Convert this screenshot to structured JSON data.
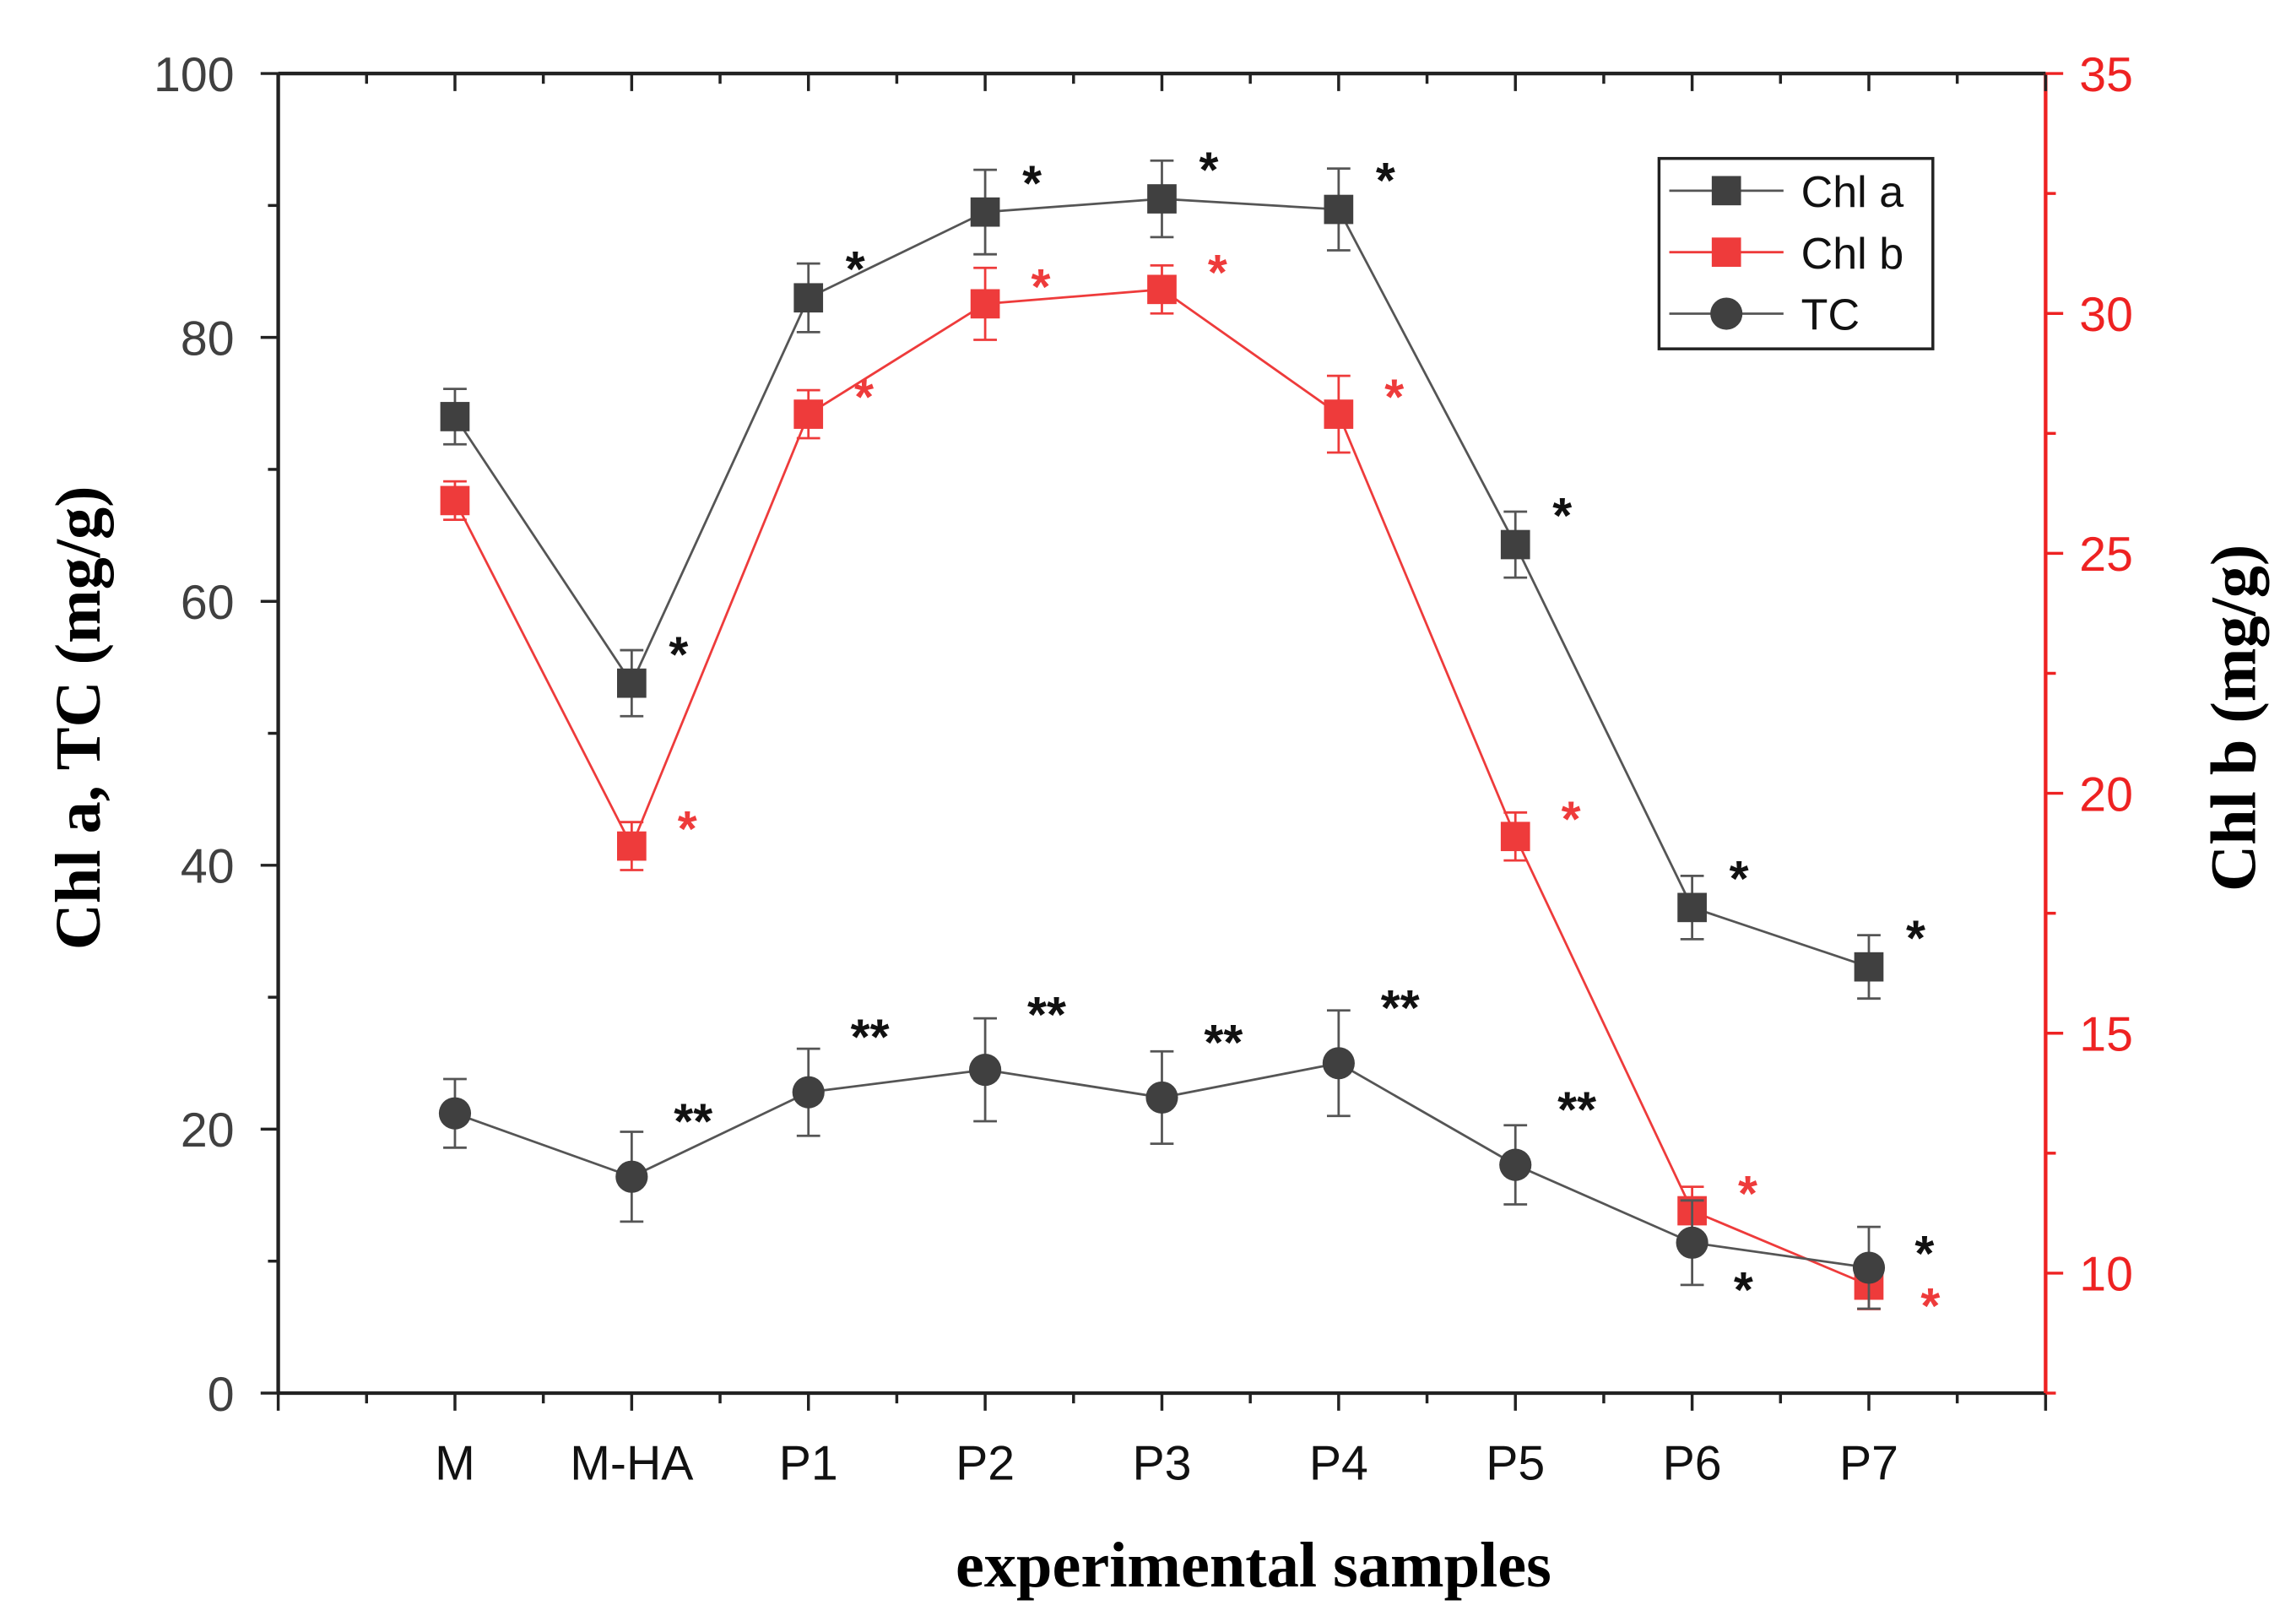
{
  "chart_data": {
    "type": "line",
    "title": "",
    "xlabel": "experimental samples",
    "ylabel": "Chl a, TC (mg/g)",
    "y2label": "Chl b (mg/g)",
    "categories": [
      "M",
      "M-HA",
      "P1",
      "P2",
      "P3",
      "P4",
      "P5",
      "P6",
      "P7"
    ],
    "ylim": [
      0,
      100
    ],
    "y2lim": [
      7.5,
      35
    ],
    "yticks": [
      "0",
      "20",
      "40",
      "60",
      "80",
      "100"
    ],
    "y2ticks": [
      "10",
      "15",
      "20",
      "25",
      "30",
      "35"
    ],
    "legend_position": "top-right",
    "series": [
      {
        "name": "Chl a",
        "axis": "left",
        "marker": "square",
        "color": "#404040",
        "values": [
          74.0,
          53.8,
          83.0,
          89.5,
          90.5,
          89.7,
          64.3,
          36.8,
          32.3
        ],
        "errors": [
          2.1,
          2.5,
          2.6,
          3.2,
          2.9,
          3.1,
          2.5,
          2.4,
          2.4
        ],
        "stars": [
          "",
          "*",
          "*",
          "*",
          "*",
          "*",
          "*",
          "*",
          "*"
        ]
      },
      {
        "name": "Chl b",
        "axis": "right",
        "marker": "square",
        "color": "#ee3b3b",
        "values": [
          26.1,
          18.9,
          27.9,
          30.2,
          30.5,
          27.9,
          19.1,
          11.3,
          9.75
        ],
        "errors": [
          0.4,
          0.5,
          0.5,
          0.75,
          0.5,
          0.8,
          0.5,
          0.5,
          0.5
        ],
        "stars": [
          "",
          "*",
          "*",
          "*",
          "*",
          "*",
          "*",
          "*",
          "*"
        ]
      },
      {
        "name": "TC",
        "axis": "left",
        "marker": "circle",
        "color": "#404040",
        "values": [
          21.2,
          16.4,
          22.8,
          24.5,
          22.4,
          25.0,
          17.3,
          11.4,
          9.5
        ],
        "errors": [
          2.6,
          3.4,
          3.3,
          3.9,
          3.5,
          4.0,
          3.0,
          3.2,
          3.1
        ],
        "stars": [
          "",
          "**",
          "**",
          "**",
          "**",
          "**",
          "**",
          "*",
          "*"
        ]
      }
    ]
  },
  "colors": {
    "axis": "#222222",
    "left_ticks": "#404040",
    "right_axis": "#ee2222"
  }
}
